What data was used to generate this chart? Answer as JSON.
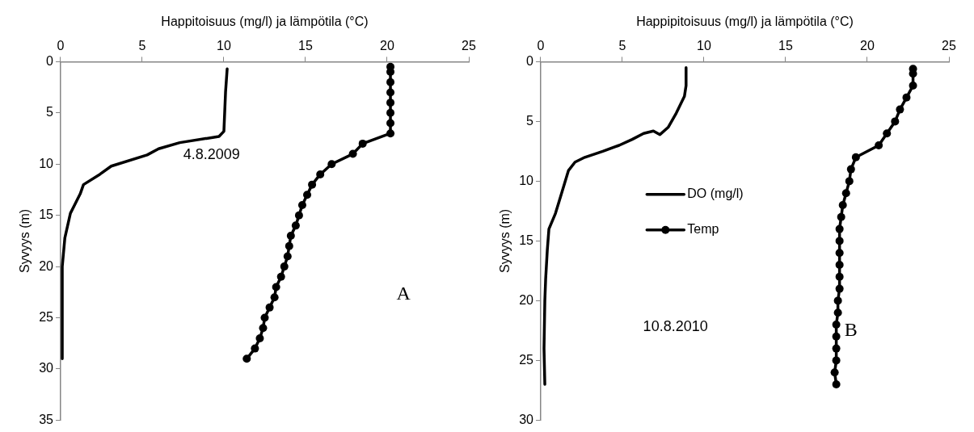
{
  "chart_data": [
    {
      "type": "line",
      "xlabel": "Happitoisuus (mg/l) ja lämpötila (°C)",
      "ylabel": "Syvyys (m)",
      "xlim": [
        0,
        25
      ],
      "xticks": [
        0,
        5,
        10,
        15,
        20,
        25
      ],
      "ylim": [
        35,
        0
      ],
      "yticks": [
        0,
        5,
        10,
        15,
        20,
        25,
        30,
        35
      ],
      "grid": false,
      "legend": false,
      "annotations": [
        "4.8.2009",
        "A"
      ],
      "series": [
        {
          "color": "#000000",
          "marker": "none",
          "x": [
            10.2,
            10.1,
            10.0,
            9.7,
            7.3,
            6.0,
            5.3,
            3.1,
            2.4,
            1.4,
            1.2,
            0.6,
            0.26,
            0.1,
            0.1
          ],
          "values": [
            0.7,
            3,
            6.8,
            7.3,
            7.9,
            8.5,
            9.1,
            10.2,
            11,
            12,
            12.9,
            14.8,
            17.2,
            20,
            29
          ]
        },
        {
          "color": "#000000",
          "marker": "circle",
          "x": [
            20.2,
            20.2,
            20.2,
            20.2,
            20.2,
            20.2,
            20.2,
            20.2,
            18.5,
            17.9,
            16.6,
            15.9,
            15.4,
            15.1,
            14.8,
            14.6,
            14.4,
            14.1,
            14.0,
            13.9,
            13.7,
            13.5,
            13.2,
            13.1,
            12.8,
            12.5,
            12.4,
            12.2,
            11.9,
            11.4
          ],
          "values": [
            0.5,
            1,
            2,
            3,
            4,
            5,
            6,
            7,
            8,
            9,
            10,
            11,
            12,
            13,
            14,
            15,
            16,
            17,
            18,
            19,
            20,
            21,
            22,
            23,
            24,
            25,
            26,
            27,
            28,
            29
          ]
        }
      ]
    },
    {
      "type": "line",
      "xlabel": "Happipitoisuus (mg/l) ja lämpötila (°C)",
      "ylabel": "Syvyys (m)",
      "xlim": [
        0,
        25
      ],
      "xticks": [
        0,
        5,
        10,
        15,
        20,
        25
      ],
      "ylim": [
        30,
        0
      ],
      "yticks": [
        0,
        5,
        10,
        15,
        20,
        25,
        30
      ],
      "grid": false,
      "legend": "left",
      "annotations": [
        "10.8.2010",
        "B"
      ],
      "series": [
        {
          "name": "DO (mg/l)",
          "color": "#000000",
          "marker": "none",
          "x": [
            8.9,
            8.9,
            8.8,
            8.3,
            7.8,
            7.3,
            6.9,
            6.3,
            5.6,
            4.8,
            3.8,
            2.7,
            2.1,
            1.7,
            1.3,
            0.9,
            0.5,
            0.4,
            0.3,
            0.25,
            0.2,
            0.25
          ],
          "values": [
            0.5,
            2,
            2.9,
            4.3,
            5.5,
            6.1,
            5.8,
            6,
            6.5,
            7,
            7.5,
            8,
            8.4,
            9.1,
            10.9,
            12.7,
            14,
            15.8,
            18.2,
            20,
            24,
            27
          ]
        },
        {
          "name": "Temp",
          "color": "#000000",
          "marker": "circle",
          "x": [
            22.8,
            22.8,
            22.8,
            22.4,
            22.0,
            21.7,
            21.2,
            20.7,
            19.3,
            19.0,
            18.9,
            18.7,
            18.5,
            18.4,
            18.3,
            18.3,
            18.3,
            18.3,
            18.3,
            18.3,
            18.2,
            18.2,
            18.1,
            18.1,
            18.1,
            18.1,
            18.0,
            18.1
          ],
          "values": [
            0.6,
            1,
            2,
            3,
            4,
            5,
            6,
            7,
            8,
            9,
            10,
            11,
            12,
            13,
            14,
            15,
            16,
            17,
            18,
            19,
            20,
            21,
            22,
            23,
            24,
            25,
            26,
            27
          ]
        }
      ]
    }
  ]
}
